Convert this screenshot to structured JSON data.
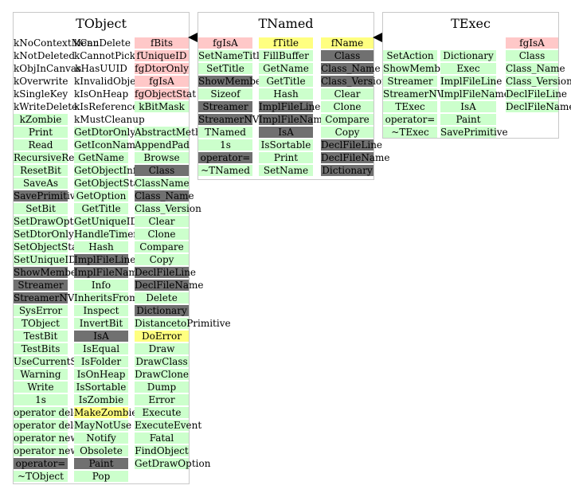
{
  "classes": [
    {
      "name": "TObject",
      "columns": [
        [
          {
            "t": "kNoContextMenu",
            "k": "plain"
          },
          {
            "t": "kNotDeleted",
            "k": "plain"
          },
          {
            "t": "kObjInCanvas",
            "k": "plain"
          },
          {
            "t": "kOverwrite",
            "k": "plain"
          },
          {
            "t": "kSingleKey",
            "k": "plain"
          },
          {
            "t": "kWriteDelete",
            "k": "plain"
          },
          {
            "t": "kZombie",
            "k": "method"
          },
          {
            "t": "Print",
            "k": "method"
          },
          {
            "t": "Read",
            "k": "method"
          },
          {
            "t": "RecursiveRemove",
            "k": "method"
          },
          {
            "t": "ResetBit",
            "k": "method"
          },
          {
            "t": "SaveAs",
            "k": "method"
          },
          {
            "t": "SavePrimitive",
            "k": "sys"
          },
          {
            "t": "SetBit",
            "k": "method"
          },
          {
            "t": "SetDrawOption",
            "k": "method"
          },
          {
            "t": "SetDtorOnly",
            "k": "method"
          },
          {
            "t": "SetObjectStat",
            "k": "method"
          },
          {
            "t": "SetUniqueID",
            "k": "method"
          },
          {
            "t": "ShowMembers",
            "k": "sys"
          },
          {
            "t": "Streamer",
            "k": "sys"
          },
          {
            "t": "StreamerNVirtual",
            "k": "sys"
          },
          {
            "t": "SysError",
            "k": "method"
          },
          {
            "t": "TObject",
            "k": "method"
          },
          {
            "t": "TestBit",
            "k": "method"
          },
          {
            "t": "TestBits",
            "k": "method"
          },
          {
            "t": "UseCurrentStyle",
            "k": "method"
          },
          {
            "t": "Warning",
            "k": "method"
          },
          {
            "t": "Write",
            "k": "method"
          },
          {
            "t": "1s",
            "k": "method"
          },
          {
            "t": "operator delete",
            "k": "method"
          },
          {
            "t": "operator delete[]",
            "k": "method"
          },
          {
            "t": "operator new",
            "k": "method"
          },
          {
            "t": "operator new[]",
            "k": "method"
          },
          {
            "t": "operator=",
            "k": "sys"
          },
          {
            "t": "~TObject",
            "k": "method"
          }
        ],
        [
          {
            "t": "kCanDelete",
            "k": "plain"
          },
          {
            "t": "kCannotPick",
            "k": "plain"
          },
          {
            "t": "kHasUUID",
            "k": "plain"
          },
          {
            "t": "kInvalidObject",
            "k": "plain"
          },
          {
            "t": "kIsOnHeap",
            "k": "plain"
          },
          {
            "t": "kIsReferenced",
            "k": "plain"
          },
          {
            "t": "kMustCleanup",
            "k": "plain"
          },
          {
            "t": "GetDtorOnly",
            "k": "method"
          },
          {
            "t": "GetIconName",
            "k": "method"
          },
          {
            "t": "GetName",
            "k": "method"
          },
          {
            "t": "GetObjectInfo",
            "k": "method"
          },
          {
            "t": "GetObjectStat",
            "k": "method"
          },
          {
            "t": "GetOption",
            "k": "method"
          },
          {
            "t": "GetTitle",
            "k": "method"
          },
          {
            "t": "GetUniqueID",
            "k": "method"
          },
          {
            "t": "HandleTimer",
            "k": "method"
          },
          {
            "t": "Hash",
            "k": "method"
          },
          {
            "t": "ImplFileLine",
            "k": "sys"
          },
          {
            "t": "ImplFileName",
            "k": "sys"
          },
          {
            "t": "Info",
            "k": "method"
          },
          {
            "t": "InheritsFrom",
            "k": "method"
          },
          {
            "t": "Inspect",
            "k": "method"
          },
          {
            "t": "InvertBit",
            "k": "method"
          },
          {
            "t": "IsA",
            "k": "sys"
          },
          {
            "t": "IsEqual",
            "k": "method"
          },
          {
            "t": "IsFolder",
            "k": "method"
          },
          {
            "t": "IsOnHeap",
            "k": "method"
          },
          {
            "t": "IsSortable",
            "k": "method"
          },
          {
            "t": "IsZombie",
            "k": "method"
          },
          {
            "t": "MakeZombie",
            "k": "hl"
          },
          {
            "t": "MayNotUse",
            "k": "method"
          },
          {
            "t": "Notify",
            "k": "method"
          },
          {
            "t": "Obsolete",
            "k": "method"
          },
          {
            "t": "Paint",
            "k": "sys"
          },
          {
            "t": "Pop",
            "k": "method"
          }
        ],
        [
          {
            "t": "fBits",
            "k": "data"
          },
          {
            "t": "fUniqueID",
            "k": "data"
          },
          {
            "t": "fgDtorOnly",
            "k": "data"
          },
          {
            "t": "fgIsA",
            "k": "data"
          },
          {
            "t": "fgObjectStat",
            "k": "data"
          },
          {
            "t": "kBitMask",
            "k": "method"
          },
          {
            "t": "",
            "k": "plain"
          },
          {
            "t": "AbstractMethod",
            "k": "method"
          },
          {
            "t": "AppendPad",
            "k": "method"
          },
          {
            "t": "Browse",
            "k": "method"
          },
          {
            "t": "Class",
            "k": "sys"
          },
          {
            "t": "ClassName",
            "k": "method"
          },
          {
            "t": "Class_Name",
            "k": "sys"
          },
          {
            "t": "Class_Version",
            "k": "method"
          },
          {
            "t": "Clear",
            "k": "method"
          },
          {
            "t": "Clone",
            "k": "method"
          },
          {
            "t": "Compare",
            "k": "method"
          },
          {
            "t": "Copy",
            "k": "method"
          },
          {
            "t": "DeclFileLine",
            "k": "sys"
          },
          {
            "t": "DeclFileName",
            "k": "sys"
          },
          {
            "t": "Delete",
            "k": "method"
          },
          {
            "t": "Dictionary",
            "k": "sys"
          },
          {
            "t": "DistancetoPrimitive",
            "k": "method"
          },
          {
            "t": "DoError",
            "k": "hl"
          },
          {
            "t": "Draw",
            "k": "method"
          },
          {
            "t": "DrawClass",
            "k": "method"
          },
          {
            "t": "DrawClone",
            "k": "method"
          },
          {
            "t": "Dump",
            "k": "method"
          },
          {
            "t": "Error",
            "k": "method"
          },
          {
            "t": "Execute",
            "k": "method"
          },
          {
            "t": "ExecuteEvent",
            "k": "method"
          },
          {
            "t": "Fatal",
            "k": "method"
          },
          {
            "t": "FindObject",
            "k": "method"
          },
          {
            "t": "GetDrawOption",
            "k": "method"
          }
        ]
      ]
    },
    {
      "name": "TNamed",
      "columns": [
        [
          {
            "t": "fgIsA",
            "k": "data"
          },
          {
            "t": "SetNameTitle",
            "k": "method"
          },
          {
            "t": "SetTitle",
            "k": "method"
          },
          {
            "t": "ShowMembers",
            "k": "sys"
          },
          {
            "t": "Sizeof",
            "k": "method"
          },
          {
            "t": "Streamer",
            "k": "sys"
          },
          {
            "t": "StreamerNVirtual",
            "k": "sys"
          },
          {
            "t": "TNamed",
            "k": "method"
          },
          {
            "t": "1s",
            "k": "method"
          },
          {
            "t": "operator=",
            "k": "sys"
          },
          {
            "t": "~TNamed",
            "k": "method"
          }
        ],
        [
          {
            "t": "fTitle",
            "k": "hl"
          },
          {
            "t": "FillBuffer",
            "k": "method"
          },
          {
            "t": "GetName",
            "k": "method"
          },
          {
            "t": "GetTitle",
            "k": "method"
          },
          {
            "t": "Hash",
            "k": "method"
          },
          {
            "t": "ImplFileLine",
            "k": "sys"
          },
          {
            "t": "ImplFileName",
            "k": "sys"
          },
          {
            "t": "IsA",
            "k": "sys"
          },
          {
            "t": "IsSortable",
            "k": "method"
          },
          {
            "t": "Print",
            "k": "method"
          },
          {
            "t": "SetName",
            "k": "method"
          }
        ],
        [
          {
            "t": "fName",
            "k": "hl"
          },
          {
            "t": "Class",
            "k": "sys"
          },
          {
            "t": "Class_Name",
            "k": "sys"
          },
          {
            "t": "Class_Version",
            "k": "sys"
          },
          {
            "t": "Clear",
            "k": "method"
          },
          {
            "t": "Clone",
            "k": "method"
          },
          {
            "t": "Compare",
            "k": "method"
          },
          {
            "t": "Copy",
            "k": "method"
          },
          {
            "t": "DeclFileLine",
            "k": "sys"
          },
          {
            "t": "DeclFileName",
            "k": "sys"
          },
          {
            "t": "Dictionary",
            "k": "sys"
          }
        ]
      ]
    },
    {
      "name": "TExec",
      "columns": [
        [
          {
            "t": "",
            "k": "plain"
          },
          {
            "t": "SetAction",
            "k": "method"
          },
          {
            "t": "ShowMembers",
            "k": "method"
          },
          {
            "t": "Streamer",
            "k": "method"
          },
          {
            "t": "StreamerNVirtual",
            "k": "method"
          },
          {
            "t": "TExec",
            "k": "method"
          },
          {
            "t": "operator=",
            "k": "method"
          },
          {
            "t": "~TExec",
            "k": "method"
          }
        ],
        [
          {
            "t": "",
            "k": "plain"
          },
          {
            "t": "Dictionary",
            "k": "method"
          },
          {
            "t": "Exec",
            "k": "method"
          },
          {
            "t": "ImplFileLine",
            "k": "method"
          },
          {
            "t": "ImplFileName",
            "k": "method"
          },
          {
            "t": "IsA",
            "k": "method"
          },
          {
            "t": "Paint",
            "k": "method"
          },
          {
            "t": "SavePrimitive",
            "k": "method"
          }
        ],
        [
          {
            "t": "fgIsA",
            "k": "data"
          },
          {
            "t": "Class",
            "k": "method"
          },
          {
            "t": "Class_Name",
            "k": "method"
          },
          {
            "t": "Class_Version",
            "k": "method"
          },
          {
            "t": "DeclFileLine",
            "k": "method"
          },
          {
            "t": "DeclFileName",
            "k": "method"
          }
        ]
      ]
    }
  ],
  "colors": {
    "method": "#ccffcc",
    "data": "#ffc8c8",
    "highlight": "#ffff80",
    "system": "#707070",
    "border": "#c8c8c8"
  }
}
